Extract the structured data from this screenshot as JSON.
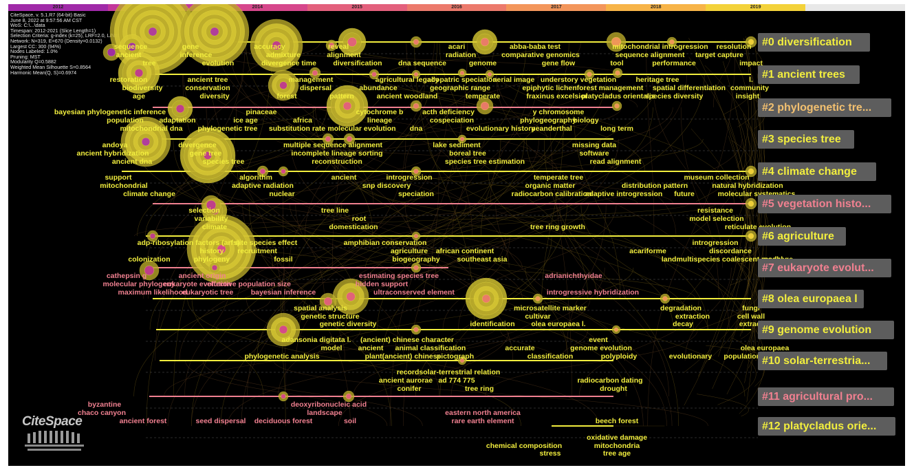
{
  "years": [
    "2012",
    "2013",
    "2014",
    "2015",
    "2016",
    "2017",
    "2018",
    "2019",
    ""
  ],
  "year_colors": [
    "#a02aa8",
    "#c2379b",
    "#d6478c",
    "#e3607d",
    "#ec7a6c",
    "#f3965b",
    "#f7b448",
    "#f3d23a",
    "#e8e8e8"
  ],
  "info_lines": [
    "CiteSpace, v. 5.1.R7 (64-bit) Basic",
    "June 8, 2022 at 9:57:56 AM CST",
    "WoS: C:\\...\\data",
    "Timespan: 2012-2021 (Slice Length=1)",
    "Selection Criteria: g-index (k=25), LRF=2.0, L/N=10, LBY=8, e=2.0",
    "Network: N=319, E=670 (Density=0.0132)",
    "Largest CC: 300 (94%)",
    "Nodes Labeled: 1.0%",
    "Pruning: MST",
    "Modularity Q=0.5882",
    "Weighted Mean Silhouette S=0.8564",
    "Harmonic Mean(Q, S)=0.6974"
  ],
  "clusters": [
    {
      "label": "#0 diversification",
      "color": "#f2ee3e"
    },
    {
      "label": "#1 ancient trees",
      "color": "#f2ee3e"
    },
    {
      "label": "#2 phylogenetic tre...",
      "color": "#f2c070"
    },
    {
      "label": "#3 species tree",
      "color": "#f2ee3e"
    },
    {
      "label": "#4 climate change",
      "color": "#f2ee3e"
    },
    {
      "label": "#5 vegetation histo...",
      "color": "#f08090"
    },
    {
      "label": "#6 agriculture",
      "color": "#f2ee3e"
    },
    {
      "label": "#7 eukaryote evolut...",
      "color": "#f08090"
    },
    {
      "label": "#8 olea europaea l",
      "color": "#f2ee3e"
    },
    {
      "label": "#9 genome evolution",
      "color": "#f2ee3e"
    },
    {
      "label": "#10 solar-terrestria...",
      "color": "#f2ee3e"
    },
    {
      "label": "#11 agricultural pro...",
      "color": "#f08090"
    },
    {
      "label": "#12 platycladus orie...",
      "color": "#f2ee3e"
    }
  ],
  "keywords": [
    {
      "t": "sequence",
      "c": "#f2ee3e"
    },
    {
      "t": "gene",
      "c": "#f2ee3e"
    },
    {
      "t": "accuracy",
      "c": "#f2ee3e"
    },
    {
      "t": "reveal",
      "c": "#f2ee3e"
    },
    {
      "t": "ancient",
      "c": "#f2ee3e"
    },
    {
      "t": "inference",
      "c": "#f2ee3e"
    },
    {
      "t": "admixture",
      "c": "#f2ee3e"
    },
    {
      "t": "alignment",
      "c": "#f2ee3e"
    },
    {
      "t": "acari",
      "c": "#f2ee3e"
    },
    {
      "t": "abba-baba test",
      "c": "#f2ee3e"
    },
    {
      "t": "mitochondrial introgression",
      "c": "#f2ee3e"
    },
    {
      "t": "resolution",
      "c": "#f2ee3e"
    },
    {
      "t": "radiation",
      "c": "#f2ee3e"
    },
    {
      "t": "comparative genomics",
      "c": "#f2ee3e"
    },
    {
      "t": "sequence alignment",
      "c": "#f2ee3e"
    },
    {
      "t": "target capture",
      "c": "#f2ee3e"
    },
    {
      "t": "tree",
      "c": "#f2ee3e"
    },
    {
      "t": "evolution",
      "c": "#f2ee3e"
    },
    {
      "t": "divergence time",
      "c": "#f2ee3e"
    },
    {
      "t": "diversification",
      "c": "#f2ee3e"
    },
    {
      "t": "dna sequence",
      "c": "#f2ee3e"
    },
    {
      "t": "genome",
      "c": "#f2ee3e"
    },
    {
      "t": "gene flow",
      "c": "#f2ee3e"
    },
    {
      "t": "tool",
      "c": "#f2ee3e"
    },
    {
      "t": "performance",
      "c": "#f2ee3e"
    },
    {
      "t": "impact",
      "c": "#f2ee3e"
    },
    {
      "t": "restoration",
      "c": "#f2ee3e"
    },
    {
      "t": "ancient tree",
      "c": "#f2ee3e"
    },
    {
      "t": "management",
      "c": "#f2ee3e"
    },
    {
      "t": "agricultural legacy",
      "c": "#f2ee3e"
    },
    {
      "t": "allopatric speciation",
      "c": "#f2ee3e"
    },
    {
      "t": "aerial image",
      "c": "#f2ee3e"
    },
    {
      "t": "understory vegetation",
      "c": "#f2ee3e"
    },
    {
      "t": "heritage tree",
      "c": "#f2ee3e"
    },
    {
      "t": "l.",
      "c": "#f2ee3e"
    },
    {
      "t": "biodiversity",
      "c": "#f2ee3e"
    },
    {
      "t": "conservation",
      "c": "#f2ee3e"
    },
    {
      "t": "dispersal",
      "c": "#f2ee3e"
    },
    {
      "t": "abundance",
      "c": "#f2ee3e"
    },
    {
      "t": "geographic range",
      "c": "#f2ee3e"
    },
    {
      "t": "epiphytic lichen",
      "c": "#f2ee3e"
    },
    {
      "t": "forest management",
      "c": "#f2ee3e"
    },
    {
      "t": "spatial differentiation",
      "c": "#f2ee3e"
    },
    {
      "t": "community",
      "c": "#f2ee3e"
    },
    {
      "t": "age",
      "c": "#f2ee3e"
    },
    {
      "t": "diversity",
      "c": "#f2ee3e"
    },
    {
      "t": "forest",
      "c": "#f2ee3e"
    },
    {
      "t": "pattern",
      "c": "#f2ee3e"
    },
    {
      "t": "ancient woodland",
      "c": "#f2ee3e"
    },
    {
      "t": "temperate",
      "c": "#f2ee3e"
    },
    {
      "t": "fraxinus excelsior",
      "c": "#f2ee3e"
    },
    {
      "t": "platycladus orientalis",
      "c": "#f2ee3e"
    },
    {
      "t": "species diversity",
      "c": "#f2ee3e"
    },
    {
      "t": "insight",
      "c": "#f2ee3e"
    },
    {
      "t": "bayesian phylogenetic inference",
      "c": "#f2ee3e"
    },
    {
      "t": "pinaceae",
      "c": "#f2ee3e"
    },
    {
      "t": "cytochrome b",
      "c": "#f2ee3e"
    },
    {
      "t": "acth deficiency",
      "c": "#f2ee3e"
    },
    {
      "t": "y chromosome",
      "c": "#f2ee3e"
    },
    {
      "t": "population",
      "c": "#f2ee3e"
    },
    {
      "t": "adaptation",
      "c": "#f2ee3e"
    },
    {
      "t": "ice age",
      "c": "#f2ee3e"
    },
    {
      "t": "africa",
      "c": "#f2ee3e"
    },
    {
      "t": "lineage",
      "c": "#f2ee3e"
    },
    {
      "t": "cospeciation",
      "c": "#f2ee3e"
    },
    {
      "t": "phylogeography",
      "c": "#f2ee3e"
    },
    {
      "t": "biology",
      "c": "#f2ee3e"
    },
    {
      "t": "mitochondrial dna",
      "c": "#f2ee3e"
    },
    {
      "t": "phylogenetic tree",
      "c": "#f2ee3e"
    },
    {
      "t": "substitution rate",
      "c": "#f2ee3e"
    },
    {
      "t": "molecular evolution",
      "c": "#f2ee3e"
    },
    {
      "t": "dna",
      "c": "#f2ee3e"
    },
    {
      "t": "evolutionary history",
      "c": "#f2ee3e"
    },
    {
      "t": "neanderthal",
      "c": "#f2ee3e"
    },
    {
      "t": "long term",
      "c": "#f2ee3e"
    },
    {
      "t": "andoya",
      "c": "#f2ee3e"
    },
    {
      "t": "divergence",
      "c": "#f2ee3e"
    },
    {
      "t": "multiple sequence alignment",
      "c": "#f2ee3e"
    },
    {
      "t": "lake sediment",
      "c": "#f2ee3e"
    },
    {
      "t": "missing data",
      "c": "#f2ee3e"
    },
    {
      "t": "ancient hybridization",
      "c": "#f2ee3e"
    },
    {
      "t": "gene tree",
      "c": "#f2ee3e"
    },
    {
      "t": "incomplete lineage sorting",
      "c": "#f2ee3e"
    },
    {
      "t": "boreal tree",
      "c": "#f2ee3e"
    },
    {
      "t": "software",
      "c": "#f2ee3e"
    },
    {
      "t": "ancient dna",
      "c": "#f2ee3e"
    },
    {
      "t": "species tree",
      "c": "#f2ee3e"
    },
    {
      "t": "reconstruction",
      "c": "#f2ee3e"
    },
    {
      "t": "species tree estimation",
      "c": "#f2ee3e"
    },
    {
      "t": "read alignment",
      "c": "#f2ee3e"
    },
    {
      "t": "support",
      "c": "#f2ee3e"
    },
    {
      "t": "algorithm",
      "c": "#f2ee3e"
    },
    {
      "t": "ancient",
      "c": "#f2ee3e"
    },
    {
      "t": "introgression",
      "c": "#f2ee3e"
    },
    {
      "t": "temperate tree",
      "c": "#f2ee3e"
    },
    {
      "t": "museum collection",
      "c": "#f2ee3e"
    },
    {
      "t": "mitochondrial",
      "c": "#f2ee3e"
    },
    {
      "t": "adaptive radiation",
      "c": "#f2ee3e"
    },
    {
      "t": "snp discovery",
      "c": "#f2ee3e"
    },
    {
      "t": "organic matter",
      "c": "#f2ee3e"
    },
    {
      "t": "distribution pattern",
      "c": "#f2ee3e"
    },
    {
      "t": "natural hybridization",
      "c": "#f2ee3e"
    },
    {
      "t": "climate change",
      "c": "#f2ee3e"
    },
    {
      "t": "nuclear",
      "c": "#f2ee3e"
    },
    {
      "t": "speciation",
      "c": "#f2ee3e"
    },
    {
      "t": "radiocarbon calibration",
      "c": "#f2ee3e"
    },
    {
      "t": "adaptive introgression",
      "c": "#f2ee3e"
    },
    {
      "t": "future",
      "c": "#f2ee3e"
    },
    {
      "t": "molecular systematics",
      "c": "#f2ee3e"
    },
    {
      "t": "selection",
      "c": "#f2ee3e"
    },
    {
      "t": "tree line",
      "c": "#f2ee3e"
    },
    {
      "t": "resistance",
      "c": "#f2ee3e"
    },
    {
      "t": "variability",
      "c": "#f2ee3e"
    },
    {
      "t": "root",
      "c": "#f2ee3e"
    },
    {
      "t": "model selection",
      "c": "#f2ee3e"
    },
    {
      "t": "climate",
      "c": "#f2ee3e"
    },
    {
      "t": "domestication",
      "c": "#f2ee3e"
    },
    {
      "t": "tree ring growth",
      "c": "#f2ee3e"
    },
    {
      "t": "reticulate evolution",
      "c": "#f2ee3e"
    },
    {
      "t": "adp-ribosylation factors (arfs)",
      "c": "#f2ee3e"
    },
    {
      "t": "site species effect",
      "c": "#f2ee3e"
    },
    {
      "t": "amphibian conservation",
      "c": "#f2ee3e"
    },
    {
      "t": "introgression",
      "c": "#f2ee3e"
    },
    {
      "t": "history",
      "c": "#f2ee3e"
    },
    {
      "t": "recruitment",
      "c": "#f2ee3e"
    },
    {
      "t": "agriculture",
      "c": "#f2ee3e"
    },
    {
      "t": "african continent",
      "c": "#f2ee3e"
    },
    {
      "t": "acariforme",
      "c": "#f2ee3e"
    },
    {
      "t": "discordance",
      "c": "#f2ee3e"
    },
    {
      "t": "colonization",
      "c": "#f2ee3e"
    },
    {
      "t": "phylogeny",
      "c": "#f2ee3e"
    },
    {
      "t": "fossil",
      "c": "#f2ee3e"
    },
    {
      "t": "biogeography",
      "c": "#f2ee3e"
    },
    {
      "t": "southeast asia",
      "c": "#f2ee3e"
    },
    {
      "t": "landmultispecies coalescent model",
      "c": "#f2ee3e"
    },
    {
      "t": "rpackage",
      "c": "#f2ee3e"
    },
    {
      "t": "cathepsin g",
      "c": "#f08090"
    },
    {
      "t": "ancient origin",
      "c": "#f08090"
    },
    {
      "t": "estimating species tree",
      "c": "#f08090"
    },
    {
      "t": "adrianichthyidae",
      "c": "#f08090"
    },
    {
      "t": "molecular phylogeny",
      "c": "#f08090"
    },
    {
      "t": "eukaryote evolution",
      "c": "#f08090"
    },
    {
      "t": "effective population size",
      "c": "#f08090"
    },
    {
      "t": "hidden support",
      "c": "#f08090"
    },
    {
      "t": "maximum likelihood",
      "c": "#f08090"
    },
    {
      "t": "eukaryotic tree",
      "c": "#f08090"
    },
    {
      "t": "bayesian inference",
      "c": "#f08090"
    },
    {
      "t": "ultraconserved element",
      "c": "#f08090"
    },
    {
      "t": "introgressive hybridization",
      "c": "#f08090"
    },
    {
      "t": "spatial analysis",
      "c": "#f2ee3e"
    },
    {
      "t": "microsatellite marker",
      "c": "#f2ee3e"
    },
    {
      "t": "degradation",
      "c": "#f2ee3e"
    },
    {
      "t": "fungi",
      "c": "#f2ee3e"
    },
    {
      "t": "genetic structure",
      "c": "#f2ee3e"
    },
    {
      "t": "cultivar",
      "c": "#f2ee3e"
    },
    {
      "t": "extraction",
      "c": "#f2ee3e"
    },
    {
      "t": "cell wall",
      "c": "#f2ee3e"
    },
    {
      "t": "genetic diversity",
      "c": "#f2ee3e"
    },
    {
      "t": "identification",
      "c": "#f2ee3e"
    },
    {
      "t": "olea europaea l.",
      "c": "#f2ee3e"
    },
    {
      "t": "decay",
      "c": "#f2ee3e"
    },
    {
      "t": "extract",
      "c": "#f2ee3e"
    },
    {
      "t": "adansonia digitata l.",
      "c": "#f2ee3e"
    },
    {
      "t": "(ancient) chinese character",
      "c": "#f2ee3e"
    },
    {
      "t": "event",
      "c": "#f2ee3e"
    },
    {
      "t": "model",
      "c": "#f2ee3e"
    },
    {
      "t": "ancient",
      "c": "#f2ee3e"
    },
    {
      "t": "animal classification",
      "c": "#f2ee3e"
    },
    {
      "t": "accurate",
      "c": "#f2ee3e"
    },
    {
      "t": "genome evolution",
      "c": "#f2ee3e"
    },
    {
      "t": "olea europaea",
      "c": "#f2ee3e"
    },
    {
      "t": "phylogenetic analysis",
      "c": "#f2ee3e"
    },
    {
      "t": "plant(ancient) chinese",
      "c": "#f2ee3e"
    },
    {
      "t": "pictograph",
      "c": "#f2ee3e"
    },
    {
      "t": "classification",
      "c": "#f2ee3e"
    },
    {
      "t": "polyploidy",
      "c": "#f2ee3e"
    },
    {
      "t": "evolutionary",
      "c": "#f2ee3e"
    },
    {
      "t": "population genetics",
      "c": "#f2ee3e"
    },
    {
      "t": "recordsolar-terrestrial relation",
      "c": "#f2ee3e"
    },
    {
      "t": "ancient aurorae",
      "c": "#f2ee3e"
    },
    {
      "t": "ad 774 775",
      "c": "#f2ee3e"
    },
    {
      "t": "radiocarbon dating",
      "c": "#f2ee3e"
    },
    {
      "t": "conifer",
      "c": "#f2ee3e"
    },
    {
      "t": "tree ring",
      "c": "#f2ee3e"
    },
    {
      "t": "drought",
      "c": "#f2ee3e"
    },
    {
      "t": "byzantine",
      "c": "#f08090"
    },
    {
      "t": "deoxyribonucleic acid",
      "c": "#f08090"
    },
    {
      "t": "chaco canyon",
      "c": "#f08090"
    },
    {
      "t": "landscape",
      "c": "#f08090"
    },
    {
      "t": "eastern north america",
      "c": "#f08090"
    },
    {
      "t": "ancient forest",
      "c": "#f08090"
    },
    {
      "t": "seed dispersal",
      "c": "#f08090"
    },
    {
      "t": "deciduous forest",
      "c": "#f08090"
    },
    {
      "t": "soil",
      "c": "#f08090"
    },
    {
      "t": "rare earth element",
      "c": "#f08090"
    },
    {
      "t": "beech forest",
      "c": "#f2ee3e"
    },
    {
      "t": "oxidative damage",
      "c": "#f2ee3e"
    },
    {
      "t": "chemical composition",
      "c": "#f2ee3e"
    },
    {
      "t": "mitochondria",
      "c": "#f2ee3e"
    },
    {
      "t": "stress",
      "c": "#f2ee3e"
    },
    {
      "t": "tree age",
      "c": "#f2ee3e"
    }
  ],
  "logo_text": "CiteSpace"
}
